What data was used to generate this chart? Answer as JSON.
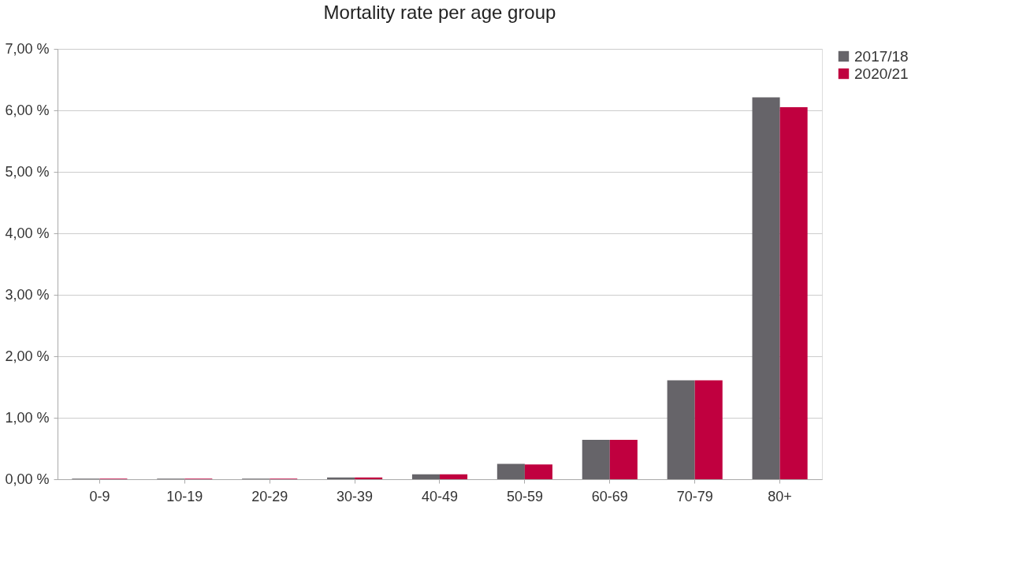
{
  "chart_data": {
    "type": "bar",
    "title": "Mortality rate per age group",
    "categories": [
      "0-9",
      "10-19",
      "20-29",
      "30-39",
      "40-49",
      "50-59",
      "60-69",
      "70-79",
      "80+"
    ],
    "series": [
      {
        "name": "2017/18",
        "color": "#666469",
        "values": [
          0.01,
          0.01,
          0.01,
          0.03,
          0.08,
          0.25,
          0.64,
          1.61,
          6.21
        ]
      },
      {
        "name": "2020/21",
        "color": "#c0003f",
        "values": [
          0.01,
          0.01,
          0.01,
          0.03,
          0.08,
          0.24,
          0.64,
          1.61,
          6.05
        ]
      }
    ],
    "ylim": [
      0,
      7
    ],
    "yticks": [
      {
        "value": 0,
        "label": "0,00 %"
      },
      {
        "value": 1,
        "label": "1,00 %"
      },
      {
        "value": 2,
        "label": "2,00 %"
      },
      {
        "value": 3,
        "label": "3,00 %"
      },
      {
        "value": 4,
        "label": "4,00 %"
      },
      {
        "value": 5,
        "label": "5,00 %"
      },
      {
        "value": 6,
        "label": "6,00 %"
      },
      {
        "value": 7,
        "label": "7,00 %"
      }
    ],
    "grid": "y",
    "legend": "right"
  }
}
